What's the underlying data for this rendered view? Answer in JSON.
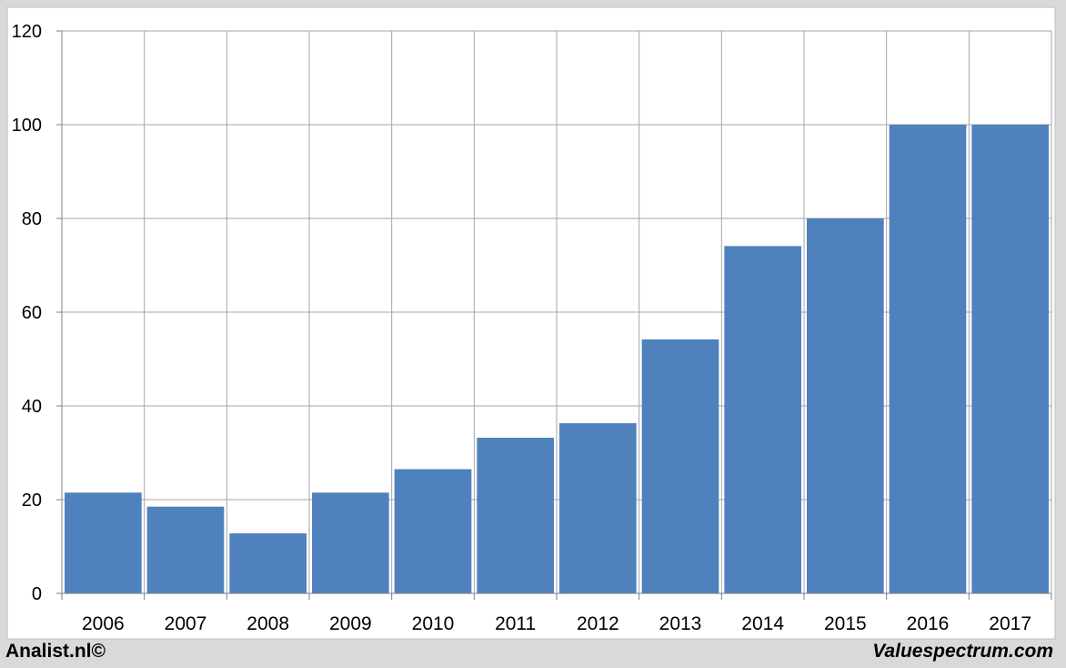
{
  "chart_data": {
    "type": "bar",
    "categories": [
      "2006",
      "2007",
      "2008",
      "2009",
      "2010",
      "2011",
      "2012",
      "2013",
      "2014",
      "2015",
      "2016",
      "2017"
    ],
    "values": [
      21.5,
      18.5,
      12.8,
      21.5,
      26.5,
      33.2,
      36.3,
      54.2,
      74.1,
      80.0,
      100.0,
      100.0
    ],
    "title": "",
    "xlabel": "",
    "ylabel": "",
    "ylim": [
      0,
      120
    ],
    "yticks": [
      "0",
      "20",
      "40",
      "60",
      "80",
      "100",
      "120"
    ],
    "grid": true,
    "bar_color": "#4f81bd"
  },
  "footer": {
    "left": "Analist.nl©",
    "right": "Valuespectrum.com"
  }
}
